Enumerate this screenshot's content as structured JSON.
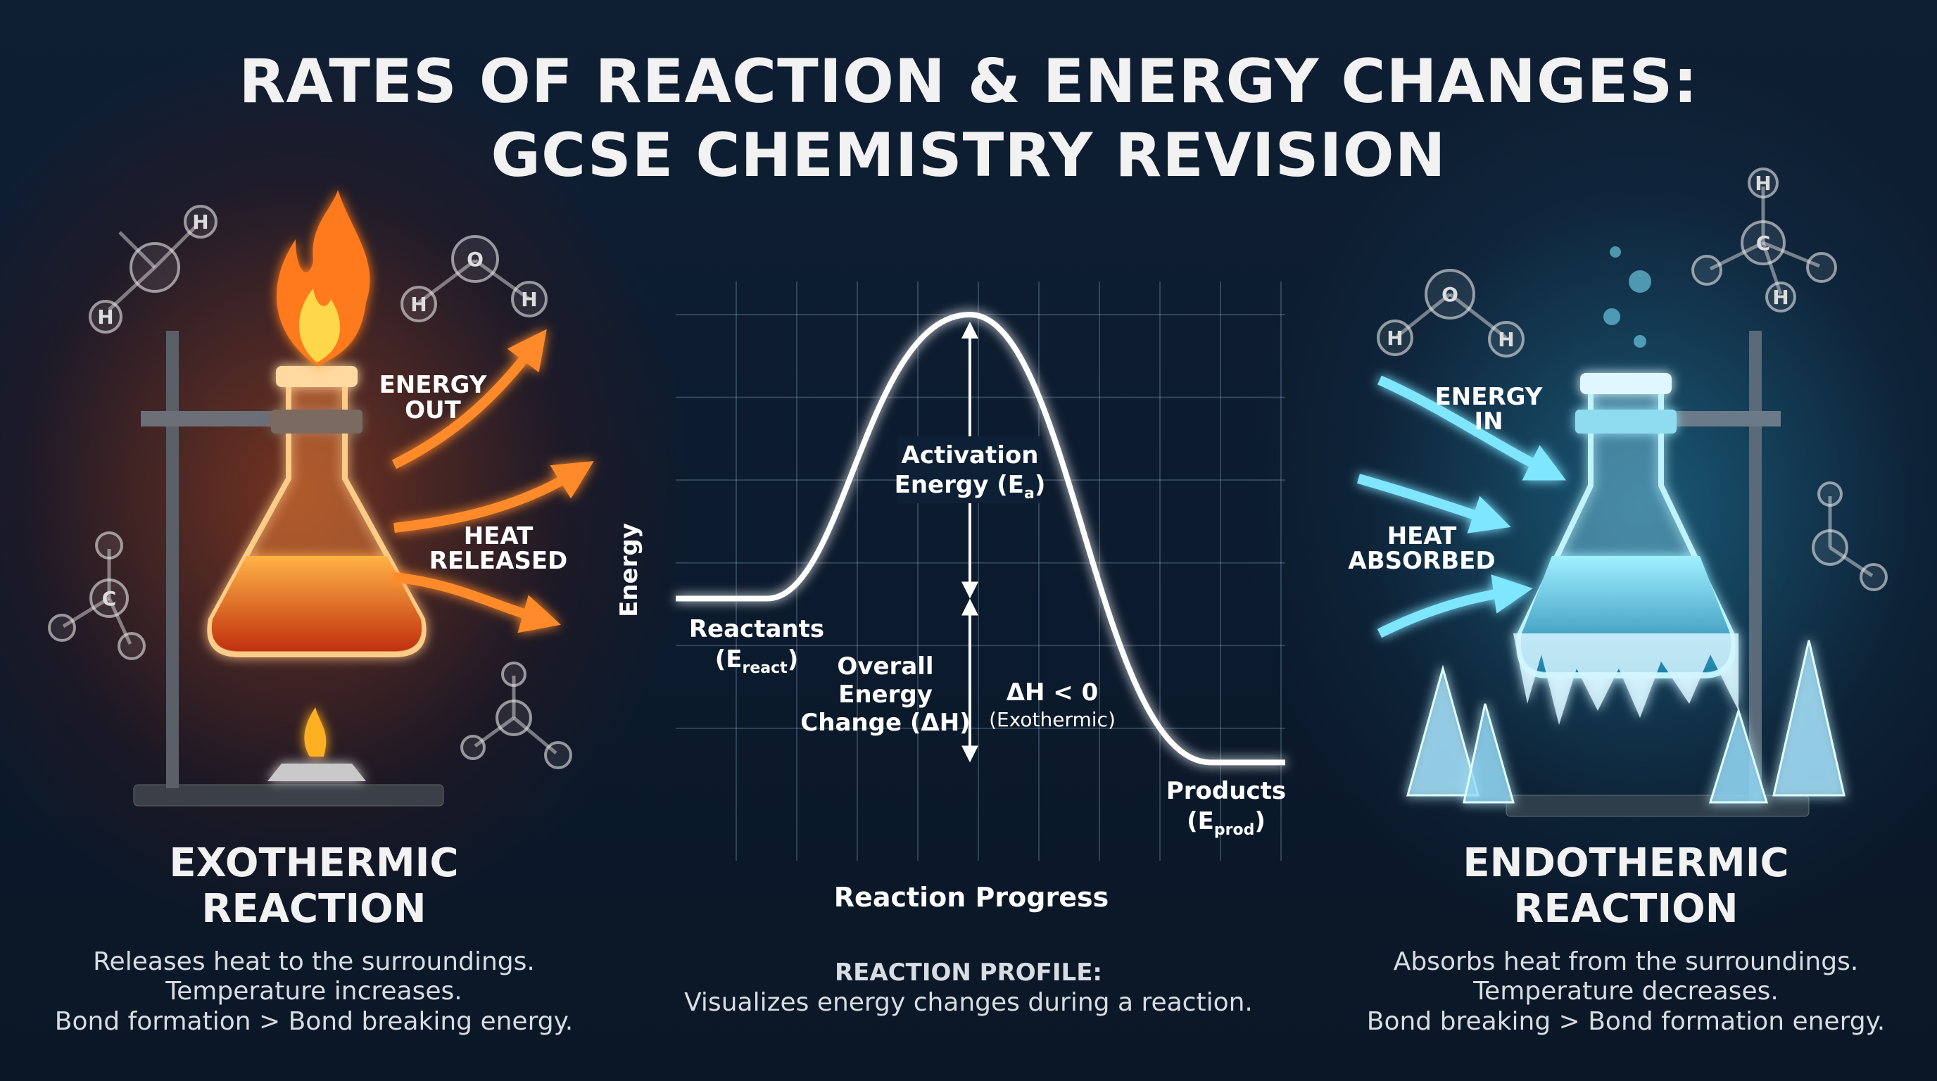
{
  "title": {
    "line1": "RATES OF REACTION & ENERGY CHANGES:",
    "line2": "GCSE CHEMISTRY REVISION"
  },
  "colors": {
    "background": "#0b1a2c",
    "exothermic_accent": "#f07a2a",
    "endothermic_accent": "#5fd3ee",
    "curve": "#ffffff"
  },
  "exothermic": {
    "energy_label": [
      "ENERGY",
      "OUT"
    ],
    "heat_label": [
      "HEAT",
      "RELEASED"
    ],
    "title": [
      "EXOTHERMIC",
      "REACTION"
    ],
    "description": [
      "Releases heat to the surroundings.",
      "Temperature increases.",
      "Bond formation > Bond breaking energy."
    ],
    "icons": [
      "flame-icon",
      "conical-flask-icon",
      "bunsen-burner-icon",
      "molecule-icon"
    ]
  },
  "endothermic": {
    "energy_label": [
      "ENERGY",
      "IN"
    ],
    "heat_label": [
      "HEAT",
      "ABSORBED"
    ],
    "title": [
      "ENDOTHERMIC",
      "REACTION"
    ],
    "description": [
      "Absorbs heat from the surroundings.",
      "Temperature decreases.",
      "Bond breaking > Bond formation energy."
    ],
    "icons": [
      "frozen-flask-icon",
      "ice-crystal-icon",
      "molecule-icon"
    ]
  },
  "molecules": {
    "water": [
      "H",
      "O",
      "H"
    ],
    "methane_atoms": [
      "H",
      "C",
      "H",
      "H"
    ]
  },
  "chart_data": {
    "type": "line",
    "xlabel": "Reaction Progress",
    "ylabel": "Energy",
    "grid": true,
    "levels": {
      "reactants": 48,
      "peak": 100,
      "products": 18
    },
    "annotations": {
      "reactants": {
        "main": "Reactants",
        "open": "(E",
        "sub": "react",
        "close": ")"
      },
      "products": {
        "main": "Products",
        "open": "(E",
        "sub": "prod",
        "close": ")"
      },
      "activation": {
        "line1": "Activation",
        "open": "Energy (E",
        "sub": "a",
        "close": ")"
      },
      "overall": [
        "Overall",
        "Energy",
        "Change (ΔH)"
      ],
      "delta": [
        "ΔH < 0",
        "(Exothermic)"
      ]
    }
  },
  "profile": {
    "heading": "REACTION PROFILE:",
    "caption": "Visualizes energy changes during a reaction."
  }
}
